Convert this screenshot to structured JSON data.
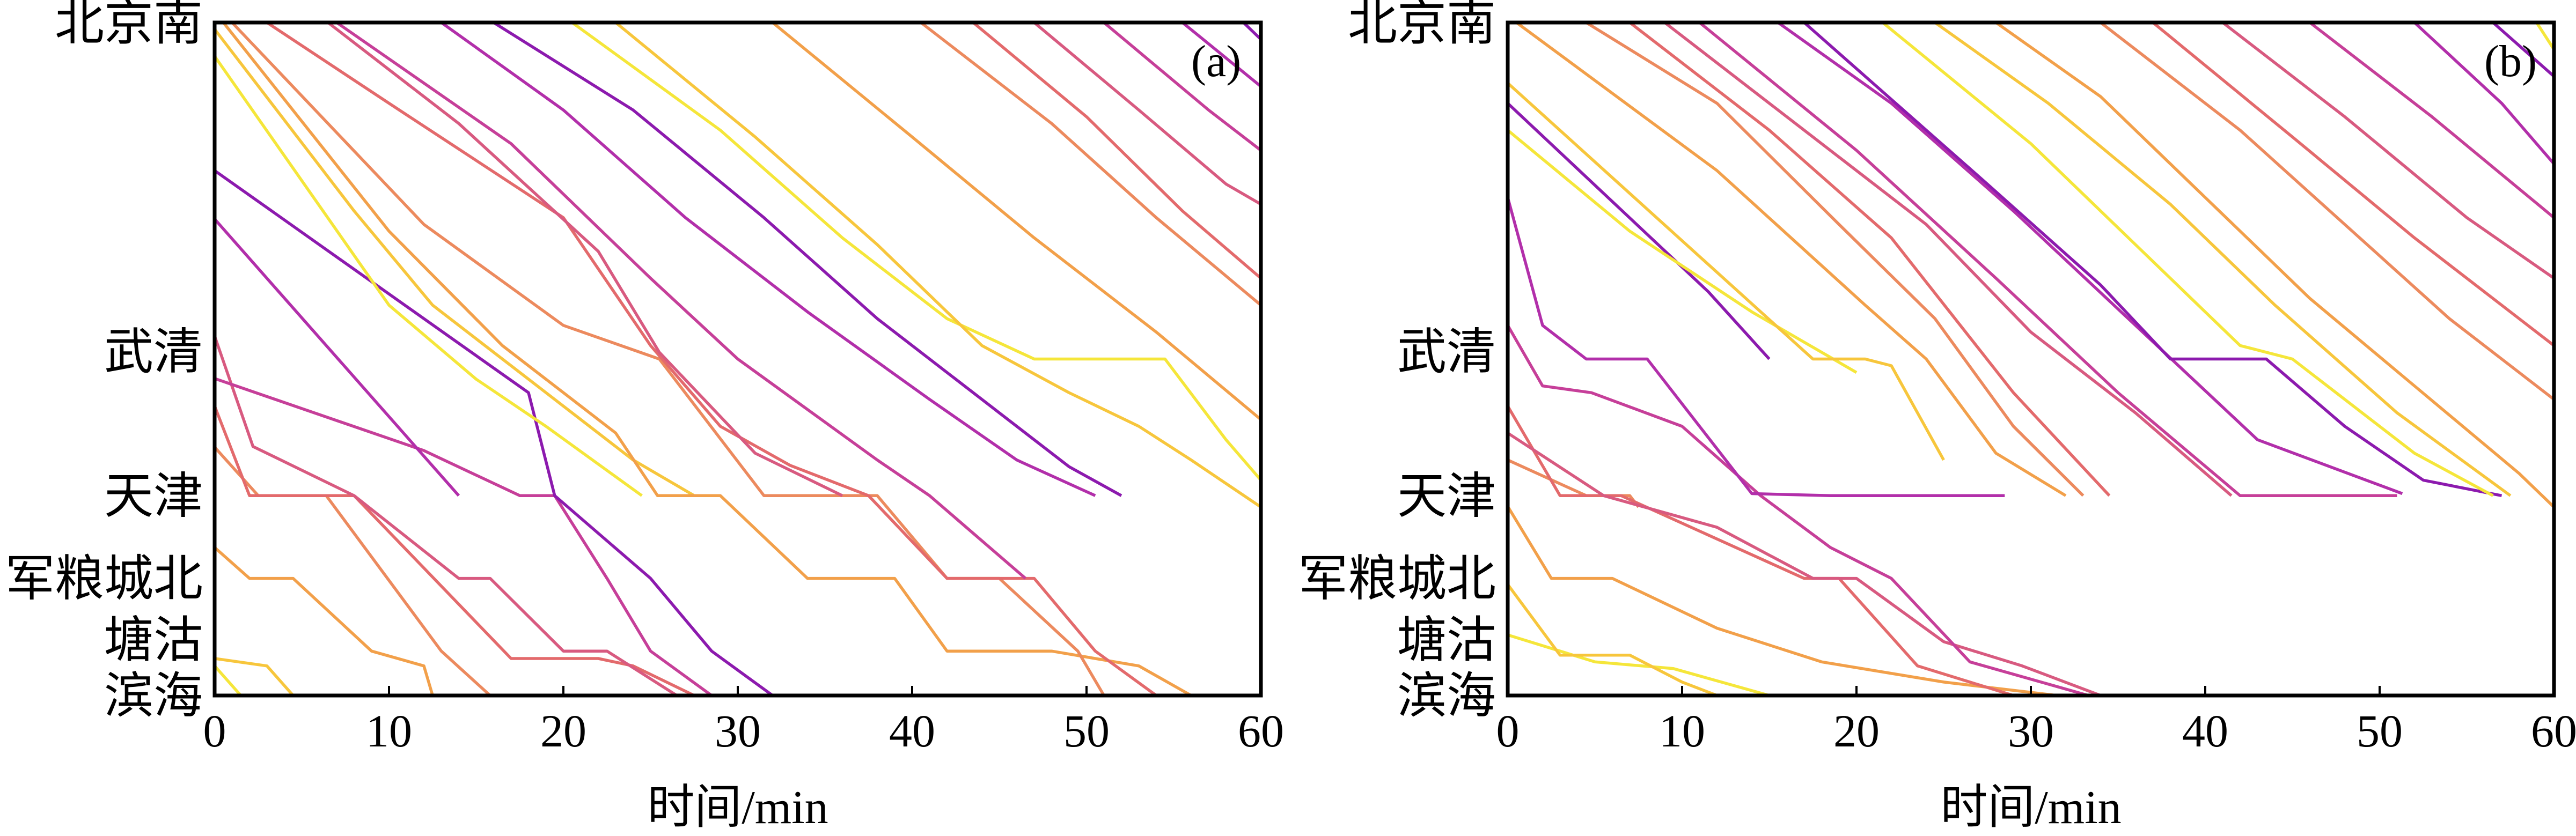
{
  "chart_data": [
    {
      "type": "line",
      "panel_label": "(a)",
      "xlabel": "时间/min",
      "xlim": [
        0,
        60
      ],
      "xticks": [
        0,
        10,
        20,
        30,
        40,
        50,
        60
      ],
      "stations": [
        {
          "name": "北京南",
          "pos": 0
        },
        {
          "name": "武清",
          "pos": 0.489
        },
        {
          "name": "天津",
          "pos": 0.703
        },
        {
          "name": "军粮城北",
          "pos": 0.826
        },
        {
          "name": "塘沽",
          "pos": 0.917
        },
        {
          "name": "滨海",
          "pos": 1
        }
      ],
      "palette": [
        "#f5e63a",
        "#f7c63c",
        "#f2a04a",
        "#ec8a5e",
        "#e36a6c",
        "#d85a80",
        "#c63f99",
        "#b22faa",
        "#8c1aae"
      ],
      "series": [
        {
          "x": [
            0,
            1.5
          ],
          "y": [
            0.956,
            1
          ]
        },
        {
          "x": [
            0,
            3,
            4.5
          ],
          "y": [
            0.945,
            0.956,
            1
          ]
        },
        {
          "x": [
            0,
            2,
            4.5,
            9,
            12,
            12.5
          ],
          "y": [
            0.78,
            0.826,
            0.826,
            0.934,
            0.956,
            1
          ]
        },
        {
          "x": [
            0,
            2.5,
            6.4,
            13,
            15.8
          ],
          "y": [
            0.631,
            0.703,
            0.703,
            0.934,
            1
          ]
        },
        {
          "x": [
            0,
            2,
            8,
            17,
            22,
            24,
            27.5
          ],
          "y": [
            0.57,
            0.703,
            0.703,
            0.945,
            0.945,
            0.956,
            1
          ]
        },
        {
          "x": [
            0,
            2.2,
            8,
            14,
            15.8,
            20,
            22.5,
            26.5
          ],
          "y": [
            0.466,
            0.63,
            0.703,
            0.826,
            0.826,
            0.934,
            0.934,
            1
          ]
        },
        {
          "x": [
            0,
            12,
            17.5,
            19.5,
            22.5,
            25,
            28.5
          ],
          "y": [
            0.529,
            0.636,
            0.703,
            0.703,
            0.826,
            0.934,
            1
          ]
        },
        {
          "x": [
            0,
            14
          ],
          "y": [
            0.292,
            0.703
          ]
        },
        {
          "x": [
            0,
            18,
            19.5,
            25,
            28.5,
            32
          ],
          "y": [
            0.22,
            0.55,
            0.703,
            0.826,
            0.934,
            1
          ]
        },
        {
          "x": [
            0,
            10,
            15,
            19,
            24.5
          ],
          "y": [
            0.05,
            0.42,
            0.53,
            0.6,
            0.703
          ]
        },
        {
          "x": [
            0,
            8,
            12.5,
            18,
            24,
            27.5
          ],
          "y": [
            0.01,
            0.28,
            0.42,
            0.53,
            0.65,
            0.703
          ]
        },
        {
          "x": [
            0.5,
            10,
            16.5,
            23,
            25.4,
            29,
            34,
            39,
            42,
            48,
            53,
            56
          ],
          "y": [
            0,
            0.31,
            0.48,
            0.61,
            0.703,
            0.703,
            0.826,
            0.826,
            0.934,
            0.934,
            0.956,
            1
          ]
        },
        {
          "x": [
            1,
            12,
            20,
            25.5,
            31.5,
            38,
            42,
            45,
            49.5,
            51
          ],
          "y": [
            0,
            0.3,
            0.45,
            0.5,
            0.703,
            0.703,
            0.826,
            0.826,
            0.934,
            1
          ]
        },
        {
          "x": [
            3,
            10,
            20,
            25,
            29,
            33,
            37.5,
            42,
            47,
            50.5,
            54
          ],
          "y": [
            0,
            0.12,
            0.29,
            0.48,
            0.6,
            0.658,
            0.703,
            0.826,
            0.826,
            0.934,
            1
          ]
        },
        {
          "x": [
            6.5,
            14,
            22,
            25.5,
            31,
            36
          ],
          "y": [
            0,
            0.15,
            0.34,
            0.49,
            0.64,
            0.703
          ]
        },
        {
          "x": [
            7,
            17,
            25,
            30,
            38,
            41,
            46.5
          ],
          "y": [
            0,
            0.18,
            0.38,
            0.5,
            0.65,
            0.703,
            0.826
          ]
        },
        {
          "x": [
            13,
            20,
            27,
            34,
            41,
            46,
            50.5
          ],
          "y": [
            0,
            0.13,
            0.29,
            0.43,
            0.56,
            0.65,
            0.703
          ]
        },
        {
          "x": [
            16,
            24,
            31.5,
            38,
            45,
            49,
            52
          ],
          "y": [
            0,
            0.13,
            0.29,
            0.44,
            0.58,
            0.66,
            0.703
          ]
        },
        {
          "x": [
            20.5,
            29,
            36,
            42,
            47,
            52,
            54.5,
            58,
            60
          ],
          "y": [
            0,
            0.16,
            0.32,
            0.44,
            0.5,
            0.5,
            0.5,
            0.62,
            0.68
          ]
        },
        {
          "x": [
            23,
            31,
            38,
            44,
            49,
            53,
            56,
            60
          ],
          "y": [
            0,
            0.17,
            0.33,
            0.48,
            0.55,
            0.6,
            0.65,
            0.72
          ]
        },
        {
          "x": [
            32,
            40,
            47,
            54,
            60
          ],
          "y": [
            0,
            0.17,
            0.32,
            0.46,
            0.59
          ]
        },
        {
          "x": [
            40.5,
            48,
            54,
            60
          ],
          "y": [
            0,
            0.15,
            0.29,
            0.42
          ]
        },
        {
          "x": [
            43.5,
            50,
            55.5,
            60
          ],
          "y": [
            0,
            0.14,
            0.28,
            0.38
          ]
        },
        {
          "x": [
            47,
            53,
            58,
            60
          ],
          "y": [
            0,
            0.13,
            0.24,
            0.27
          ]
        },
        {
          "x": [
            51,
            57,
            60
          ],
          "y": [
            0,
            0.13,
            0.19
          ]
        },
        {
          "x": [
            55.5,
            60
          ],
          "y": [
            0,
            0.095
          ]
        },
        {
          "x": [
            59,
            60
          ],
          "y": [
            0,
            0.025
          ]
        }
      ]
    },
    {
      "type": "line",
      "panel_label": "(b)",
      "xlabel": "时间/min",
      "xlim": [
        0,
        60
      ],
      "xticks": [
        0,
        10,
        20,
        30,
        40,
        50,
        60
      ],
      "stations": [
        {
          "name": "北京南",
          "pos": 0
        },
        {
          "name": "武清",
          "pos": 0.489
        },
        {
          "name": "天津",
          "pos": 0.703
        },
        {
          "name": "军粮城北",
          "pos": 0.826
        },
        {
          "name": "塘沽",
          "pos": 0.917
        },
        {
          "name": "滨海",
          "pos": 1
        }
      ],
      "palette": [
        "#f5e63a",
        "#f7c63c",
        "#f2a04a",
        "#ec8a5e",
        "#e36a6c",
        "#d85a80",
        "#c63f99",
        "#b22faa",
        "#8c1aae"
      ],
      "series": [
        {
          "x": [
            0,
            5,
            9.5,
            15,
            15
          ],
          "y": [
            0.91,
            0.95,
            0.96,
            1,
            1
          ]
        },
        {
          "x": [
            0,
            3,
            7,
            10,
            12
          ],
          "y": [
            0.835,
            0.94,
            0.94,
            0.98,
            1
          ]
        },
        {
          "x": [
            0,
            2.5,
            6,
            12,
            18,
            25,
            31.5
          ],
          "y": [
            0.719,
            0.826,
            0.826,
            0.9,
            0.95,
            0.98,
            1
          ]
        },
        {
          "x": [
            0,
            4.5,
            7,
            7.5
          ],
          "y": [
            0.65,
            0.703,
            0.703,
            0.72
          ]
        },
        {
          "x": [
            0,
            3,
            6.5,
            17,
            19,
            23.5,
            29
          ],
          "y": [
            0.57,
            0.703,
            0.703,
            0.826,
            0.826,
            0.956,
            1
          ]
        },
        {
          "x": [
            0,
            5.5,
            12,
            17.5,
            20,
            25,
            29.5,
            34
          ],
          "y": [
            0.61,
            0.703,
            0.75,
            0.826,
            0.826,
            0.92,
            0.956,
            1
          ]
        },
        {
          "x": [
            0,
            2,
            4.8,
            10,
            14.5,
            18.5,
            22,
            26.5,
            33.3
          ],
          "y": [
            0.45,
            0.54,
            0.55,
            0.6,
            0.703,
            0.78,
            0.826,
            0.95,
            1
          ]
        },
        {
          "x": [
            0,
            2,
            4.5,
            8,
            14,
            18.5,
            28.5
          ],
          "y": [
            0.26,
            0.45,
            0.5,
            0.5,
            0.7,
            0.703,
            0.703
          ]
        },
        {
          "x": [
            0,
            11.5,
            15
          ],
          "y": [
            0.12,
            0.4,
            0.5
          ]
        },
        {
          "x": [
            0,
            7,
            14,
            20
          ],
          "y": [
            0.16,
            0.31,
            0.43,
            0.52
          ]
        },
        {
          "x": [
            0,
            17.5,
            20.5,
            22,
            25
          ],
          "y": [
            0.09,
            0.5,
            0.5,
            0.51,
            0.65
          ]
        },
        {
          "x": [
            0.5,
            12,
            20.5,
            24,
            28,
            32
          ],
          "y": [
            0,
            0.22,
            0.42,
            0.5,
            0.64,
            0.703
          ]
        },
        {
          "x": [
            4.5,
            12,
            19,
            24.5,
            29,
            33
          ],
          "y": [
            0,
            0.12,
            0.3,
            0.44,
            0.6,
            0.703
          ]
        },
        {
          "x": [
            7,
            15,
            22,
            29,
            34.5
          ],
          "y": [
            0,
            0.16,
            0.32,
            0.55,
            0.703
          ]
        },
        {
          "x": [
            9,
            17,
            24,
            30,
            36,
            41.5
          ],
          "y": [
            0,
            0.16,
            0.3,
            0.46,
            0.58,
            0.703
          ]
        },
        {
          "x": [
            11,
            20,
            28,
            35,
            42,
            51
          ],
          "y": [
            0,
            0.19,
            0.38,
            0.55,
            0.703,
            0.703
          ]
        },
        {
          "x": [
            15.5,
            22,
            29,
            36,
            43,
            51.3
          ],
          "y": [
            0,
            0.12,
            0.28,
            0.45,
            0.62,
            0.7
          ]
        },
        {
          "x": [
            17,
            27.5,
            34,
            38,
            41,
            43.5,
            48,
            52.5,
            57
          ],
          "y": [
            0,
            0.24,
            0.39,
            0.5,
            0.5,
            0.5,
            0.6,
            0.68,
            0.703
          ]
        },
        {
          "x": [
            21.5,
            30,
            36,
            42,
            45,
            49,
            52,
            56.5
          ],
          "y": [
            0,
            0.18,
            0.33,
            0.48,
            0.5,
            0.58,
            0.64,
            0.703
          ]
        },
        {
          "x": [
            24.5,
            31,
            38,
            44,
            51,
            57.5
          ],
          "y": [
            0,
            0.12,
            0.27,
            0.42,
            0.58,
            0.703
          ]
        },
        {
          "x": [
            28,
            34,
            40,
            46,
            52,
            58,
            60
          ],
          "y": [
            0,
            0.11,
            0.26,
            0.41,
            0.54,
            0.67,
            0.72
          ]
        },
        {
          "x": [
            34,
            42,
            48,
            54,
            60
          ],
          "y": [
            0,
            0.16,
            0.3,
            0.44,
            0.56
          ]
        },
        {
          "x": [
            37,
            45,
            52,
            60
          ],
          "y": [
            0,
            0.17,
            0.32,
            0.48
          ]
        },
        {
          "x": [
            41,
            48,
            55,
            60
          ],
          "y": [
            0,
            0.14,
            0.29,
            0.38
          ]
        },
        {
          "x": [
            46,
            53,
            60
          ],
          "y": [
            0,
            0.14,
            0.29
          ]
        },
        {
          "x": [
            52,
            57,
            60
          ],
          "y": [
            0,
            0.12,
            0.21
          ]
        },
        {
          "x": [
            56.5,
            60
          ],
          "y": [
            0,
            0.08
          ]
        },
        {
          "x": [
            59,
            60
          ],
          "y": [
            0,
            0.04
          ]
        }
      ]
    }
  ]
}
